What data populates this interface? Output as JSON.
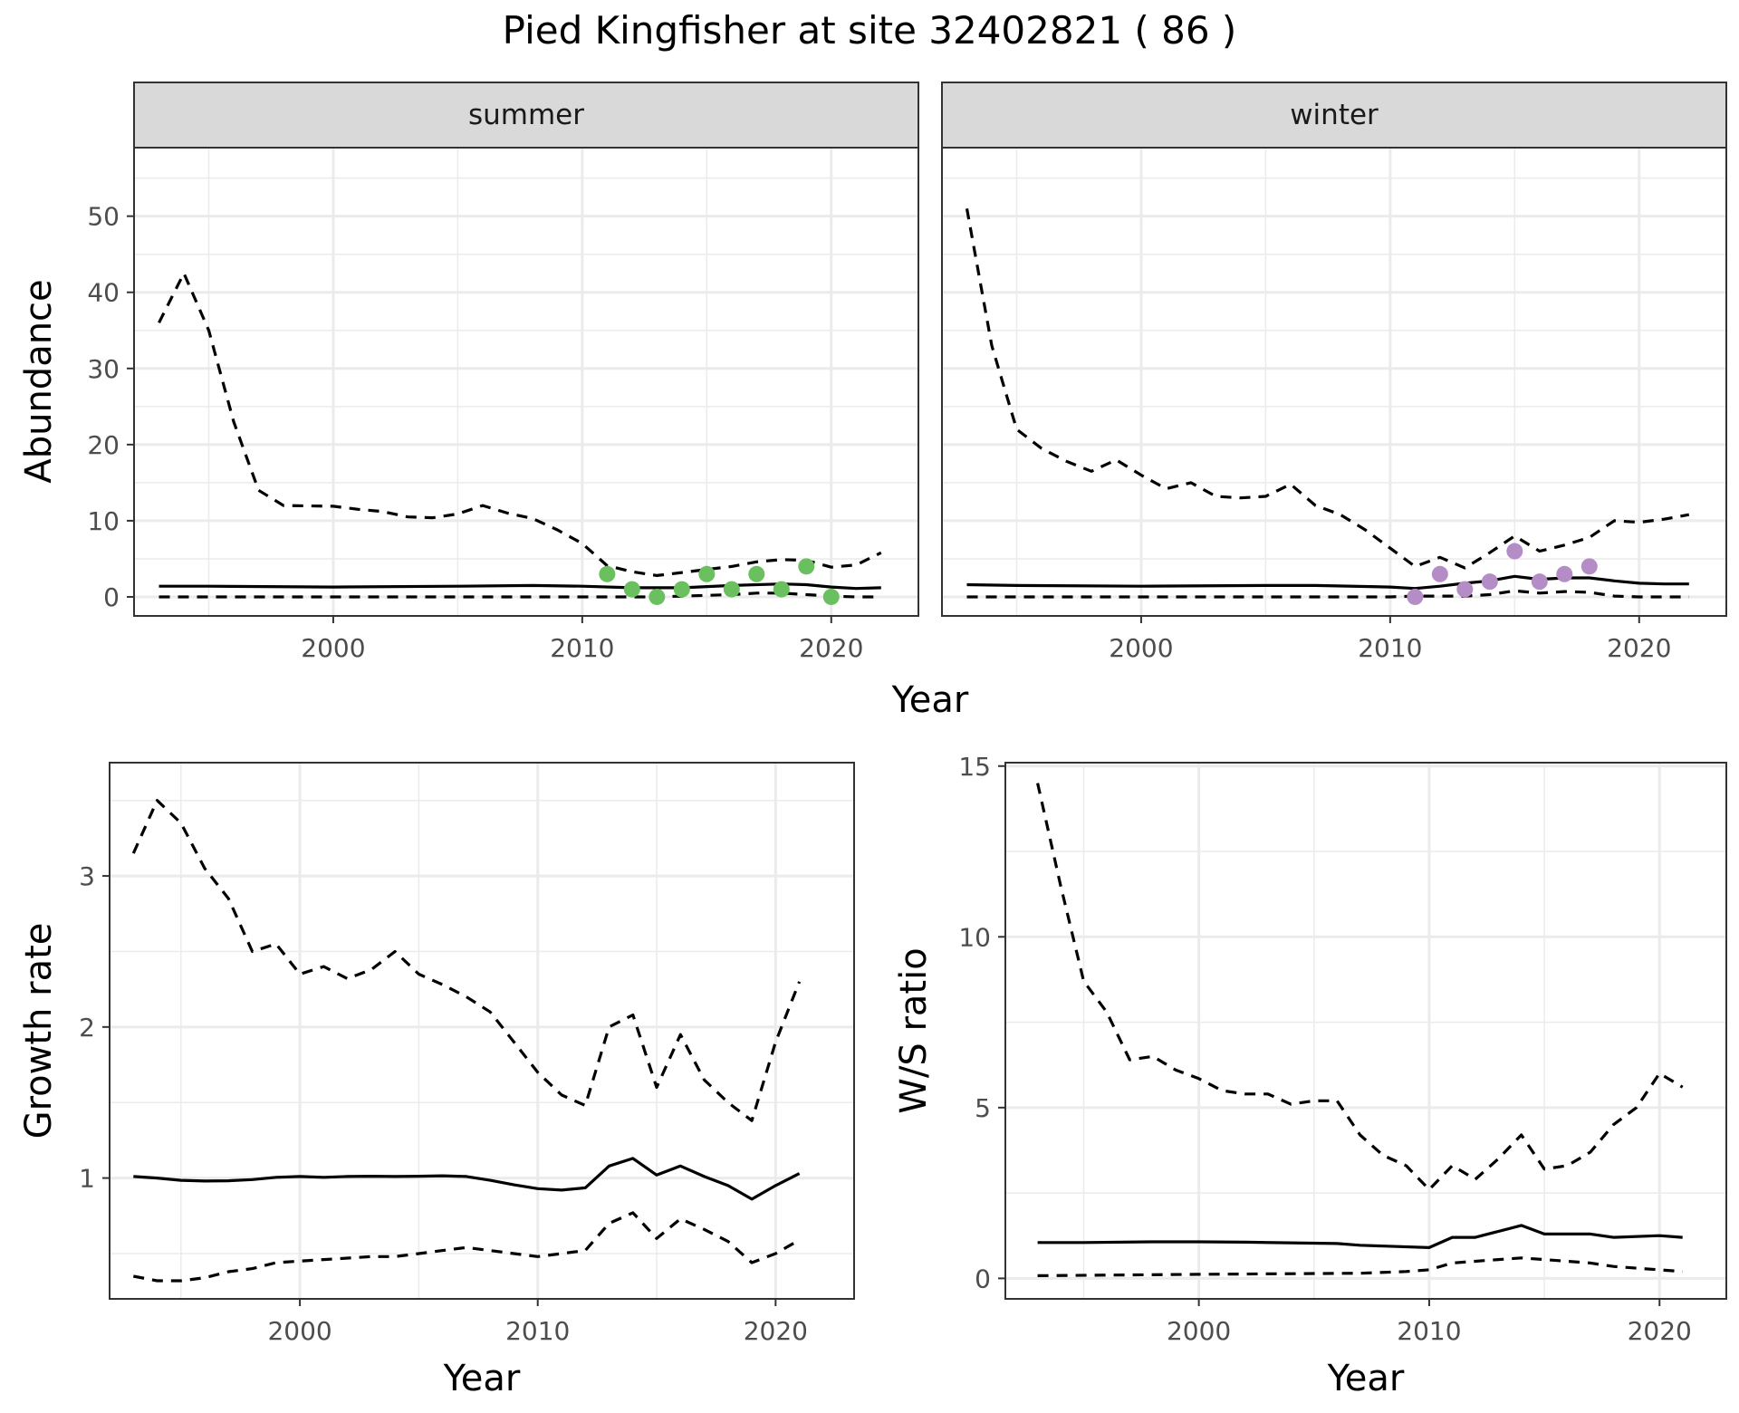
{
  "title": "Pied Kingfisher at site 32402821 ( 86 )",
  "colors": {
    "summer_points": "#6abf5e",
    "winter_points": "#b48cc6",
    "line": "#000000",
    "grid": "#ebebeb",
    "strip_fill": "#d9d9d9"
  },
  "chart_data": [
    {
      "type": "line",
      "panel": "abundance",
      "facets": [
        "summer",
        "winter"
      ],
      "xlabel": "Year",
      "ylabel": "Abundance",
      "xlim": [
        1992,
        2023.5
      ],
      "ylim": [
        -2.5,
        59
      ],
      "xticks": [
        2000,
        2010,
        2020
      ],
      "yticks": [
        0,
        10,
        20,
        30,
        40,
        50
      ],
      "grid": true,
      "summer": {
        "estimate": {
          "x": [
            1993,
            1995,
            2000,
            2005,
            2008,
            2010,
            2012,
            2014,
            2016,
            2018,
            2019,
            2020,
            2021,
            2022
          ],
          "y": [
            1.4,
            1.4,
            1.3,
            1.4,
            1.5,
            1.4,
            1.2,
            1.2,
            1.5,
            1.7,
            1.6,
            1.3,
            1.1,
            1.2
          ]
        },
        "upper": {
          "x": [
            1993,
            1994,
            1995,
            1996,
            1997,
            1998,
            2000,
            2001,
            2002,
            2003,
            2004,
            2005,
            2006,
            2007,
            2008,
            2009,
            2010,
            2011,
            2012,
            2013,
            2014,
            2015,
            2016,
            2017,
            2018,
            2019,
            2020,
            2021,
            2022
          ],
          "y": [
            36,
            42.5,
            35,
            23,
            14,
            12,
            11.9,
            11.5,
            11.2,
            10.5,
            10.4,
            10.9,
            12,
            11,
            10.3,
            8.8,
            7,
            4.1,
            3.3,
            2.8,
            3.2,
            3.6,
            4,
            4.6,
            4.9,
            4.8,
            3.9,
            4.2,
            5.8
          ]
        },
        "lower": {
          "x": [
            1993,
            2012,
            2013,
            2014,
            2015,
            2016,
            2017,
            2018,
            2019,
            2020,
            2021,
            2022
          ],
          "y": [
            0,
            0,
            0,
            0.1,
            0.2,
            0.3,
            0.5,
            0.5,
            0.3,
            0.1,
            0,
            0
          ]
        },
        "observed": {
          "x": [
            2011,
            2012,
            2013,
            2014,
            2015,
            2016,
            2017,
            2018,
            2019,
            2020
          ],
          "y": [
            3,
            1,
            0,
            1,
            3,
            1,
            3,
            1,
            4,
            0
          ]
        }
      },
      "winter": {
        "estimate": {
          "x": [
            1993,
            1995,
            2000,
            2005,
            2007,
            2010,
            2011,
            2012,
            2013,
            2014,
            2015,
            2016,
            2017,
            2018,
            2019,
            2020,
            2021,
            2022
          ],
          "y": [
            1.6,
            1.5,
            1.4,
            1.5,
            1.5,
            1.3,
            1.1,
            1.4,
            1.8,
            2.1,
            2.7,
            2.3,
            2.5,
            2.5,
            2.1,
            1.8,
            1.7,
            1.7
          ]
        },
        "upper": {
          "x": [
            1993,
            1994,
            1995,
            1996,
            1997,
            1998,
            1999,
            2000,
            2001,
            2002,
            2003,
            2004,
            2005,
            2006,
            2007,
            2008,
            2009,
            2010,
            2011,
            2012,
            2013,
            2014,
            2015,
            2016,
            2017,
            2018,
            2019,
            2020,
            2021,
            2022
          ],
          "y": [
            51,
            33,
            22,
            19.5,
            17.8,
            16.5,
            18,
            16,
            14.2,
            15,
            13.2,
            13,
            13.2,
            14.8,
            12,
            10.8,
            8.8,
            6.4,
            4,
            5.2,
            3.8,
            5.8,
            8,
            6,
            6.8,
            7.8,
            10,
            9.8,
            10.2,
            10.8
          ]
        },
        "lower": {
          "x": [
            1993,
            2010,
            2011,
            2012,
            2013,
            2014,
            2015,
            2016,
            2017,
            2018,
            2019,
            2020,
            2021,
            2022
          ],
          "y": [
            0,
            0,
            0.1,
            0.1,
            0.1,
            0.3,
            0.8,
            0.5,
            0.7,
            0.6,
            0.1,
            0,
            0,
            0
          ]
        },
        "observed": {
          "x": [
            2011,
            2012,
            2013,
            2014,
            2015,
            2016,
            2017,
            2018
          ],
          "y": [
            0,
            3,
            1,
            2,
            6,
            2,
            3,
            4
          ]
        }
      }
    },
    {
      "type": "line",
      "panel": "growth",
      "xlabel": "Year",
      "ylabel": "Growth rate",
      "xlim": [
        1992,
        2023.3
      ],
      "ylim": [
        0.2,
        3.75
      ],
      "xticks": [
        2000,
        2010,
        2020
      ],
      "yticks": [
        1,
        2,
        3
      ],
      "grid": true,
      "estimate": {
        "x": [
          1993,
          1994,
          1995,
          1996,
          1997,
          1998,
          1999,
          2000,
          2001,
          2002,
          2003,
          2004,
          2005,
          2006,
          2007,
          2008,
          2009,
          2010,
          2011,
          2012,
          2013,
          2014,
          2015,
          2016,
          2017,
          2018,
          2019,
          2020,
          2021
        ],
        "y": [
          1.01,
          1,
          0.985,
          0.98,
          0.982,
          0.99,
          1.005,
          1.01,
          1.005,
          1.01,
          1.012,
          1.01,
          1.012,
          1.015,
          1.01,
          0.985,
          0.955,
          0.93,
          0.92,
          0.935,
          1.08,
          1.13,
          1.02,
          1.08,
          1.01,
          0.95,
          0.86,
          0.95,
          1.03
        ]
      },
      "upper": {
        "x": [
          1993,
          1994,
          1995,
          1996,
          1997,
          1998,
          1999,
          2000,
          2001,
          2002,
          2003,
          2004,
          2005,
          2006,
          2007,
          2008,
          2009,
          2010,
          2011,
          2012,
          2013,
          2014,
          2015,
          2016,
          2017,
          2018,
          2019,
          2020,
          2021
        ],
        "y": [
          3.15,
          3.5,
          3.35,
          3.05,
          2.85,
          2.5,
          2.55,
          2.35,
          2.4,
          2.32,
          2.38,
          2.5,
          2.35,
          2.28,
          2.2,
          2.1,
          1.9,
          1.7,
          1.55,
          1.48,
          2.0,
          2.08,
          1.6,
          1.95,
          1.65,
          1.5,
          1.38,
          1.9,
          2.3
        ]
      },
      "lower": {
        "x": [
          1993,
          1994,
          1995,
          1996,
          1997,
          1998,
          1999,
          2000,
          2001,
          2002,
          2003,
          2004,
          2005,
          2006,
          2007,
          2008,
          2009,
          2010,
          2011,
          2012,
          2013,
          2014,
          2015,
          2016,
          2017,
          2018,
          2019,
          2020,
          2021
        ],
        "y": [
          0.35,
          0.32,
          0.32,
          0.34,
          0.38,
          0.4,
          0.44,
          0.45,
          0.46,
          0.47,
          0.48,
          0.48,
          0.5,
          0.52,
          0.54,
          0.52,
          0.5,
          0.48,
          0.5,
          0.52,
          0.7,
          0.77,
          0.6,
          0.73,
          0.66,
          0.58,
          0.44,
          0.5,
          0.59
        ]
      }
    },
    {
      "type": "line",
      "panel": "ratio",
      "xlabel": "Year",
      "ylabel": "W/S ratio",
      "xlim": [
        1991.6,
        2022.9
      ],
      "ylim": [
        -0.6,
        15.1
      ],
      "xticks": [
        2000,
        2010,
        2020
      ],
      "yticks": [
        0,
        5,
        10,
        15
      ],
      "grid": true,
      "estimate": {
        "x": [
          1993,
          1995,
          1998,
          2000,
          2002,
          2006,
          2007,
          2010,
          2011,
          2012,
          2014,
          2015,
          2017,
          2018,
          2020,
          2021
        ],
        "y": [
          1.05,
          1.05,
          1.07,
          1.07,
          1.06,
          1.02,
          0.97,
          0.9,
          1.2,
          1.2,
          1.55,
          1.3,
          1.3,
          1.2,
          1.25,
          1.2
        ]
      },
      "upper": {
        "x": [
          1993,
          1994,
          1995,
          1996,
          1997,
          1998,
          1999,
          2000,
          2001,
          2002,
          2003,
          2004,
          2005,
          2006,
          2007,
          2008,
          2009,
          2010,
          2011,
          2012,
          2013,
          2014,
          2015,
          2016,
          2017,
          2018,
          2019,
          2020,
          2021
        ],
        "y": [
          14.5,
          11.5,
          8.7,
          7.8,
          6.4,
          6.5,
          6.1,
          5.85,
          5.5,
          5.4,
          5.4,
          5.1,
          5.2,
          5.2,
          4.2,
          3.6,
          3.3,
          2.6,
          3.3,
          2.9,
          3.5,
          4.2,
          3.2,
          3.3,
          3.7,
          4.5,
          5.0,
          6.0,
          5.6
        ]
      },
      "lower": {
        "x": [
          1993,
          2000,
          2007,
          2009,
          2010,
          2011,
          2012,
          2013,
          2014,
          2015,
          2016,
          2017,
          2018,
          2019,
          2020,
          2021
        ],
        "y": [
          0.08,
          0.12,
          0.15,
          0.2,
          0.25,
          0.45,
          0.5,
          0.55,
          0.6,
          0.55,
          0.5,
          0.45,
          0.35,
          0.3,
          0.25,
          0.2
        ]
      }
    }
  ]
}
